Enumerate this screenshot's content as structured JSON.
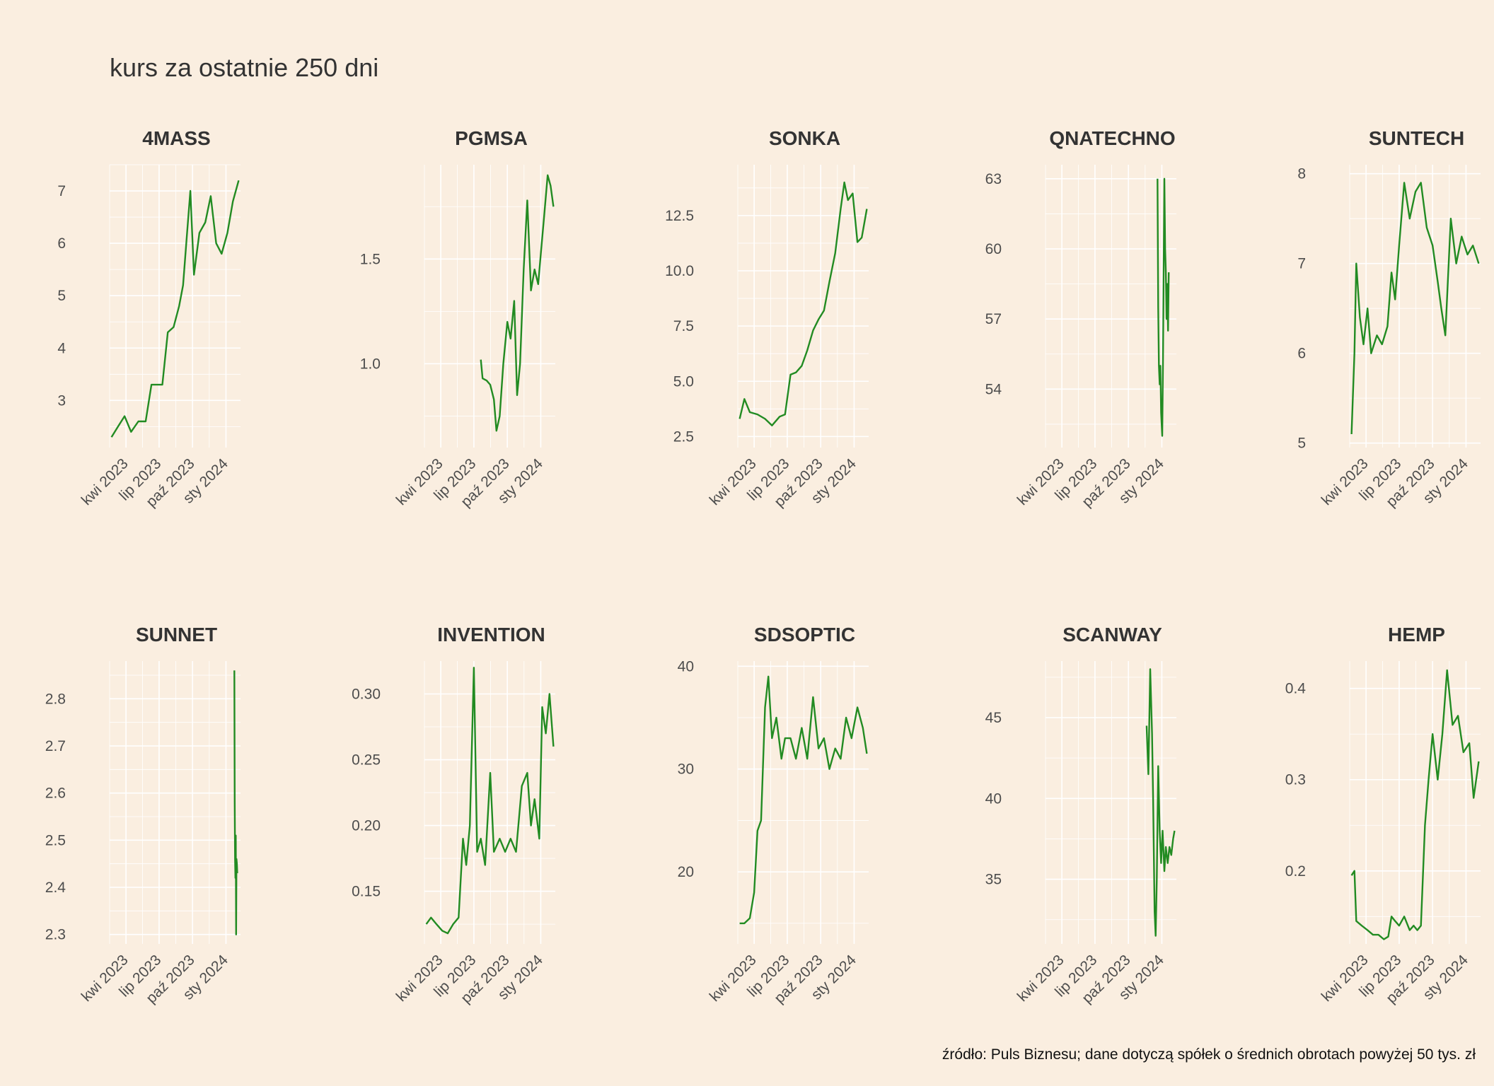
{
  "title": "kurs za ostatnie 250 dni",
  "caption": "źródło: Puls Biznesu; dane dotyczą spółek o średnich obrotach powyżej 50 tys. zł",
  "colors": {
    "background": "#FAEEE0",
    "line": "#228B22",
    "grid": "#FFFFFF",
    "text": "#404040"
  },
  "chart_data": [
    {
      "type": "line",
      "title": "4MASS",
      "xlim": [
        "2023-02-15",
        "2024-02-10"
      ],
      "x_ticks": [
        {
          "date": "2023-04-01",
          "label": "kwi 2023"
        },
        {
          "date": "2023-07-01",
          "label": "lip 2023"
        },
        {
          "date": "2023-10-01",
          "label": "paź 2023"
        },
        {
          "date": "2024-01-01",
          "label": "sty 2024"
        }
      ],
      "ylim": [
        2.1,
        7.5
      ],
      "y_ticks": [
        3,
        4,
        5,
        6,
        7
      ],
      "y_labels": [
        "3",
        "4",
        "5",
        "6",
        "7"
      ],
      "x": [
        "2023-02-20",
        "2023-03-10",
        "2023-03-28",
        "2023-04-15",
        "2023-05-05",
        "2023-05-25",
        "2023-06-10",
        "2023-06-25",
        "2023-07-10",
        "2023-07-25",
        "2023-08-10",
        "2023-08-25",
        "2023-09-05",
        "2023-09-15",
        "2023-09-25",
        "2023-10-05",
        "2023-10-20",
        "2023-11-05",
        "2023-11-20",
        "2023-12-05",
        "2023-12-20",
        "2024-01-05",
        "2024-01-20",
        "2024-02-05"
      ],
      "values": [
        2.3,
        2.5,
        2.7,
        2.4,
        2.6,
        2.6,
        3.3,
        3.3,
        3.3,
        4.3,
        4.4,
        4.8,
        5.2,
        6.1,
        7.0,
        5.4,
        6.2,
        6.4,
        6.9,
        6.0,
        5.8,
        6.2,
        6.8,
        7.2
      ]
    },
    {
      "type": "line",
      "title": "PGMSA",
      "xlim": [
        "2023-02-15",
        "2024-02-10"
      ],
      "x_ticks": [
        {
          "date": "2023-04-01",
          "label": "kwi 2023"
        },
        {
          "date": "2023-07-01",
          "label": "lip 2023"
        },
        {
          "date": "2023-10-01",
          "label": "paź 2023"
        },
        {
          "date": "2024-01-01",
          "label": "sty 2024"
        }
      ],
      "ylim": [
        0.6,
        1.95
      ],
      "y_ticks": [
        1.0,
        1.5
      ],
      "y_labels": [
        "1.0",
        "1.5"
      ],
      "x": [
        "2023-07-20",
        "2023-07-25",
        "2023-08-05",
        "2023-08-15",
        "2023-08-25",
        "2023-09-01",
        "2023-09-10",
        "2023-09-20",
        "2023-10-01",
        "2023-10-10",
        "2023-10-20",
        "2023-10-28",
        "2023-11-05",
        "2023-11-15",
        "2023-11-25",
        "2023-12-05",
        "2023-12-15",
        "2023-12-25",
        "2024-01-01",
        "2024-01-10",
        "2024-01-20",
        "2024-01-28",
        "2024-02-05"
      ],
      "values": [
        1.02,
        0.93,
        0.92,
        0.9,
        0.83,
        0.68,
        0.75,
        1.0,
        1.2,
        1.12,
        1.3,
        0.85,
        1.0,
        1.45,
        1.78,
        1.35,
        1.45,
        1.38,
        1.52,
        1.7,
        1.9,
        1.85,
        1.75
      ]
    },
    {
      "type": "line",
      "title": "SONKA",
      "xlim": [
        "2023-02-15",
        "2024-02-10"
      ],
      "x_ticks": [
        {
          "date": "2023-04-01",
          "label": "kwi 2023"
        },
        {
          "date": "2023-07-01",
          "label": "lip 2023"
        },
        {
          "date": "2023-10-01",
          "label": "paź 2023"
        },
        {
          "date": "2024-01-01",
          "label": "sty 2024"
        }
      ],
      "ylim": [
        2.0,
        14.8
      ],
      "y_ticks": [
        2.5,
        5.0,
        7.5,
        10.0,
        12.5
      ],
      "y_labels": [
        "2.5",
        "5.0",
        "7.5",
        "10.0",
        "12.5"
      ],
      "x": [
        "2023-02-20",
        "2023-03-05",
        "2023-03-20",
        "2023-04-10",
        "2023-05-01",
        "2023-05-20",
        "2023-06-10",
        "2023-06-25",
        "2023-07-10",
        "2023-07-25",
        "2023-08-10",
        "2023-08-25",
        "2023-09-10",
        "2023-09-25",
        "2023-10-10",
        "2023-10-25",
        "2023-11-10",
        "2023-11-25",
        "2023-12-05",
        "2023-12-15",
        "2023-12-28",
        "2024-01-10",
        "2024-01-22",
        "2024-02-05"
      ],
      "values": [
        3.3,
        4.2,
        3.6,
        3.5,
        3.3,
        3.0,
        3.4,
        3.5,
        5.3,
        5.4,
        5.7,
        6.4,
        7.3,
        7.8,
        8.2,
        9.5,
        10.8,
        12.8,
        14.0,
        13.2,
        13.5,
        11.3,
        11.5,
        12.8
      ]
    },
    {
      "type": "line",
      "title": "QNATECHNO",
      "xlim": [
        "2023-02-15",
        "2024-02-10"
      ],
      "x_ticks": [
        {
          "date": "2023-04-01",
          "label": "kwi 2023"
        },
        {
          "date": "2023-07-01",
          "label": "lip 2023"
        },
        {
          "date": "2023-10-01",
          "label": "paź 2023"
        },
        {
          "date": "2024-01-01",
          "label": "sty 2024"
        }
      ],
      "ylim": [
        51.5,
        63.6
      ],
      "y_ticks": [
        54,
        57,
        60,
        63
      ],
      "y_labels": [
        "54",
        "57",
        "60",
        "63"
      ],
      "x": [
        "2023-12-20",
        "2023-12-22",
        "2023-12-24",
        "2023-12-26",
        "2023-12-28",
        "2023-12-30",
        "2024-01-02",
        "2024-01-04",
        "2024-01-06",
        "2024-01-08",
        "2024-01-10",
        "2024-01-12",
        "2024-01-14",
        "2024-01-16",
        "2024-01-18",
        "2024-01-20"
      ],
      "values": [
        63.0,
        57.5,
        55.0,
        54.2,
        55.0,
        53.0,
        52.0,
        55.0,
        59.0,
        63.0,
        60.0,
        59.0,
        57.0,
        58.5,
        56.5,
        59.0
      ]
    },
    {
      "type": "line",
      "title": "SUNTECH",
      "xlim": [
        "2023-02-15",
        "2024-02-10"
      ],
      "x_ticks": [
        {
          "date": "2023-04-01",
          "label": "kwi 2023"
        },
        {
          "date": "2023-07-01",
          "label": "lip 2023"
        },
        {
          "date": "2023-10-01",
          "label": "paź 2023"
        },
        {
          "date": "2024-01-01",
          "label": "sty 2024"
        }
      ],
      "ylim": [
        4.95,
        8.1
      ],
      "y_ticks": [
        5,
        6,
        7,
        8
      ],
      "y_labels": [
        "5",
        "6",
        "7",
        "8"
      ],
      "x": [
        "2023-02-20",
        "2023-02-28",
        "2023-03-05",
        "2023-03-15",
        "2023-03-25",
        "2023-04-05",
        "2023-04-15",
        "2023-05-01",
        "2023-05-15",
        "2023-05-30",
        "2023-06-10",
        "2023-06-20",
        "2023-07-01",
        "2023-07-15",
        "2023-07-30",
        "2023-08-15",
        "2023-08-30",
        "2023-09-15",
        "2023-10-01",
        "2023-10-15",
        "2023-10-25",
        "2023-11-05",
        "2023-11-20",
        "2023-12-05",
        "2023-12-20",
        "2024-01-05",
        "2024-01-20",
        "2024-02-05"
      ],
      "values": [
        5.1,
        6.0,
        7.0,
        6.4,
        6.1,
        6.5,
        6.0,
        6.2,
        6.1,
        6.3,
        6.9,
        6.6,
        7.2,
        7.9,
        7.5,
        7.8,
        7.9,
        7.4,
        7.2,
        6.8,
        6.5,
        6.2,
        7.5,
        7.0,
        7.3,
        7.1,
        7.2,
        7.0
      ]
    },
    {
      "type": "line",
      "title": "SUNNET",
      "xlim": [
        "2023-02-15",
        "2024-02-10"
      ],
      "x_ticks": [
        {
          "date": "2023-04-01",
          "label": "kwi 2023"
        },
        {
          "date": "2023-07-01",
          "label": "lip 2023"
        },
        {
          "date": "2023-10-01",
          "label": "paź 2023"
        },
        {
          "date": "2024-01-01",
          "label": "sty 2024"
        }
      ],
      "ylim": [
        2.28,
        2.88
      ],
      "y_ticks": [
        2.3,
        2.4,
        2.5,
        2.6,
        2.7,
        2.8
      ],
      "y_labels": [
        "2.3",
        "2.4",
        "2.5",
        "2.6",
        "2.7",
        "2.8"
      ],
      "x": [
        "2024-01-24",
        "2024-01-25",
        "2024-01-26",
        "2024-01-27",
        "2024-01-28",
        "2024-01-29",
        "2024-01-30",
        "2024-01-31",
        "2024-02-01"
      ],
      "values": [
        2.86,
        2.58,
        2.46,
        2.42,
        2.51,
        2.3,
        2.46,
        2.45,
        2.43
      ]
    },
    {
      "type": "line",
      "title": "INVENTION",
      "xlim": [
        "2023-02-15",
        "2024-02-10"
      ],
      "x_ticks": [
        {
          "date": "2023-04-01",
          "label": "kwi 2023"
        },
        {
          "date": "2023-07-01",
          "label": "lip 2023"
        },
        {
          "date": "2023-10-01",
          "label": "paź 2023"
        },
        {
          "date": "2024-01-01",
          "label": "sty 2024"
        }
      ],
      "ylim": [
        0.11,
        0.325
      ],
      "y_ticks": [
        0.15,
        0.2,
        0.25,
        0.3
      ],
      "y_labels": [
        "0.15",
        "0.20",
        "0.25",
        "0.30"
      ],
      "x": [
        "2023-02-20",
        "2023-03-05",
        "2023-03-20",
        "2023-04-05",
        "2023-04-20",
        "2023-05-05",
        "2023-05-20",
        "2023-06-01",
        "2023-06-10",
        "2023-06-20",
        "2023-07-01",
        "2023-07-10",
        "2023-07-20",
        "2023-08-01",
        "2023-08-15",
        "2023-08-25",
        "2023-09-10",
        "2023-09-25",
        "2023-10-10",
        "2023-10-25",
        "2023-11-10",
        "2023-11-25",
        "2023-12-05",
        "2023-12-15",
        "2023-12-28",
        "2024-01-05",
        "2024-01-15",
        "2024-01-25",
        "2024-02-05"
      ],
      "values": [
        0.125,
        0.13,
        0.125,
        0.12,
        0.118,
        0.125,
        0.13,
        0.19,
        0.17,
        0.2,
        0.32,
        0.18,
        0.19,
        0.17,
        0.24,
        0.18,
        0.19,
        0.18,
        0.19,
        0.18,
        0.23,
        0.24,
        0.2,
        0.22,
        0.19,
        0.29,
        0.27,
        0.3,
        0.26
      ]
    },
    {
      "type": "line",
      "title": "SDSOPTIC",
      "xlim": [
        "2023-02-15",
        "2024-02-10"
      ],
      "x_ticks": [
        {
          "date": "2023-04-01",
          "label": "kwi 2023"
        },
        {
          "date": "2023-07-01",
          "label": "lip 2023"
        },
        {
          "date": "2023-10-01",
          "label": "paź 2023"
        },
        {
          "date": "2024-01-01",
          "label": "sty 2024"
        }
      ],
      "ylim": [
        13.0,
        40.5
      ],
      "y_ticks": [
        20,
        30,
        40
      ],
      "y_labels": [
        "20",
        "30",
        "40"
      ],
      "x": [
        "2023-02-20",
        "2023-03-05",
        "2023-03-20",
        "2023-04-01",
        "2023-04-10",
        "2023-04-20",
        "2023-05-01",
        "2023-05-10",
        "2023-05-20",
        "2023-06-01",
        "2023-06-15",
        "2023-06-25",
        "2023-07-10",
        "2023-07-25",
        "2023-08-10",
        "2023-08-25",
        "2023-09-10",
        "2023-09-25",
        "2023-10-10",
        "2023-10-25",
        "2023-11-10",
        "2023-11-25",
        "2023-12-10",
        "2023-12-25",
        "2024-01-10",
        "2024-01-25",
        "2024-02-05"
      ],
      "values": [
        15.0,
        15.0,
        15.5,
        18.0,
        24.0,
        25.0,
        36.0,
        39.0,
        33.0,
        35.0,
        31.0,
        33.0,
        33.0,
        31.0,
        34.0,
        31.0,
        37.0,
        32.0,
        33.0,
        30.0,
        32.0,
        31.0,
        35.0,
        33.0,
        36.0,
        34.0,
        31.5
      ]
    },
    {
      "type": "line",
      "title": "SCANWAY",
      "xlim": [
        "2023-02-15",
        "2024-02-10"
      ],
      "x_ticks": [
        {
          "date": "2023-04-01",
          "label": "kwi 2023"
        },
        {
          "date": "2023-07-01",
          "label": "lip 2023"
        },
        {
          "date": "2023-10-01",
          "label": "paź 2023"
        },
        {
          "date": "2024-01-01",
          "label": "sty 2024"
        }
      ],
      "ylim": [
        31.0,
        48.5
      ],
      "y_ticks": [
        35,
        40,
        45
      ],
      "y_labels": [
        "35",
        "40",
        "45"
      ],
      "x": [
        "2023-11-20",
        "2023-11-25",
        "2023-11-30",
        "2023-12-05",
        "2023-12-08",
        "2023-12-12",
        "2023-12-15",
        "2023-12-18",
        "2023-12-22",
        "2023-12-26",
        "2023-12-30",
        "2024-01-03",
        "2024-01-08",
        "2024-01-12",
        "2024-01-17",
        "2024-01-22",
        "2024-01-27",
        "2024-02-01",
        "2024-02-05"
      ],
      "values": [
        44.5,
        41.5,
        48.0,
        44.0,
        40.0,
        33.0,
        31.5,
        35.0,
        42.0,
        38.0,
        36.0,
        38.0,
        35.5,
        37.0,
        36.0,
        37.0,
        36.5,
        37.5,
        38.0
      ]
    },
    {
      "type": "line",
      "title": "HEMP",
      "xlim": [
        "2023-02-15",
        "2024-02-10"
      ],
      "x_ticks": [
        {
          "date": "2023-04-01",
          "label": "kwi 2023"
        },
        {
          "date": "2023-07-01",
          "label": "lip 2023"
        },
        {
          "date": "2023-10-01",
          "label": "paź 2023"
        },
        {
          "date": "2024-01-01",
          "label": "sty 2024"
        }
      ],
      "ylim": [
        0.12,
        0.43
      ],
      "y_ticks": [
        0.2,
        0.3,
        0.4
      ],
      "y_labels": [
        "0.2",
        "0.3",
        "0.4"
      ],
      "x": [
        "2023-02-20",
        "2023-02-28",
        "2023-03-05",
        "2023-03-20",
        "2023-04-05",
        "2023-04-20",
        "2023-05-05",
        "2023-05-20",
        "2023-06-01",
        "2023-06-10",
        "2023-06-20",
        "2023-07-01",
        "2023-07-15",
        "2023-07-30",
        "2023-08-10",
        "2023-08-20",
        "2023-08-30",
        "2023-09-10",
        "2023-09-20",
        "2023-10-01",
        "2023-10-15",
        "2023-10-28",
        "2023-11-10",
        "2023-11-25",
        "2023-12-10",
        "2023-12-25",
        "2024-01-10",
        "2024-01-22",
        "2024-02-05"
      ],
      "values": [
        0.195,
        0.2,
        0.145,
        0.14,
        0.135,
        0.13,
        0.13,
        0.125,
        0.128,
        0.15,
        0.145,
        0.14,
        0.15,
        0.135,
        0.14,
        0.135,
        0.14,
        0.25,
        0.3,
        0.35,
        0.3,
        0.35,
        0.42,
        0.36,
        0.37,
        0.33,
        0.34,
        0.28,
        0.32
      ]
    }
  ]
}
